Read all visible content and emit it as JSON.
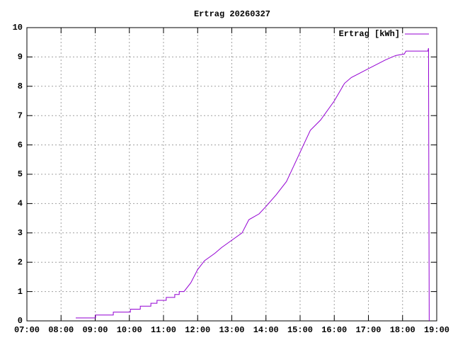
{
  "chart_data": {
    "type": "line",
    "title": "Ertrag 20260327",
    "x": [
      8.43,
      9.01,
      9.01,
      9.53,
      9.53,
      10.03,
      10.03,
      10.32,
      10.32,
      10.63,
      10.63,
      10.81,
      10.81,
      11.08,
      11.08,
      11.33,
      11.33,
      11.46,
      11.46,
      11.6,
      11.8,
      12.0,
      12.2,
      12.5,
      12.7,
      13.0,
      13.3,
      13.5,
      13.8,
      14.0,
      14.3,
      14.6,
      14.9,
      15.1,
      15.3,
      15.6,
      16.0,
      16.3,
      16.5,
      17.0,
      17.5,
      17.8,
      18.05,
      18.1,
      18.74,
      18.76,
      18.77,
      18.78
    ],
    "series": [
      {
        "name": "Ertrag [kWh]",
        "color": "#9400d3",
        "values": [
          0.1,
          0.1,
          0.2,
          0.2,
          0.3,
          0.3,
          0.4,
          0.4,
          0.5,
          0.5,
          0.6,
          0.6,
          0.7,
          0.7,
          0.8,
          0.8,
          0.9,
          0.9,
          1.0,
          1.0,
          1.3,
          1.75,
          2.05,
          2.3,
          2.5,
          2.75,
          3.0,
          3.45,
          3.65,
          3.9,
          4.3,
          4.75,
          5.5,
          6.0,
          6.5,
          6.85,
          7.5,
          8.1,
          8.3,
          8.6,
          8.9,
          9.05,
          9.1,
          9.2,
          9.2,
          9.3,
          4.6,
          0
        ]
      }
    ],
    "xlim": [
      7,
      19
    ],
    "xticks": [
      {
        "value": 7,
        "label": "07:00"
      },
      {
        "value": 8,
        "label": "08:00"
      },
      {
        "value": 9,
        "label": "09:00"
      },
      {
        "value": 10,
        "label": "10:00"
      },
      {
        "value": 11,
        "label": "11:00"
      },
      {
        "value": 12,
        "label": "12:00"
      },
      {
        "value": 13,
        "label": "13:00"
      },
      {
        "value": 14,
        "label": "14:00"
      },
      {
        "value": 15,
        "label": "15:00"
      },
      {
        "value": 16,
        "label": "16:00"
      },
      {
        "value": 17,
        "label": "17:00"
      },
      {
        "value": 18,
        "label": "18:00"
      },
      {
        "value": 19,
        "label": "19:00"
      }
    ],
    "ylim": [
      0,
      10
    ],
    "yticks": [
      0,
      1,
      2,
      3,
      4,
      5,
      6,
      7,
      8,
      9,
      10
    ],
    "grid": true,
    "legend": "top-right"
  }
}
